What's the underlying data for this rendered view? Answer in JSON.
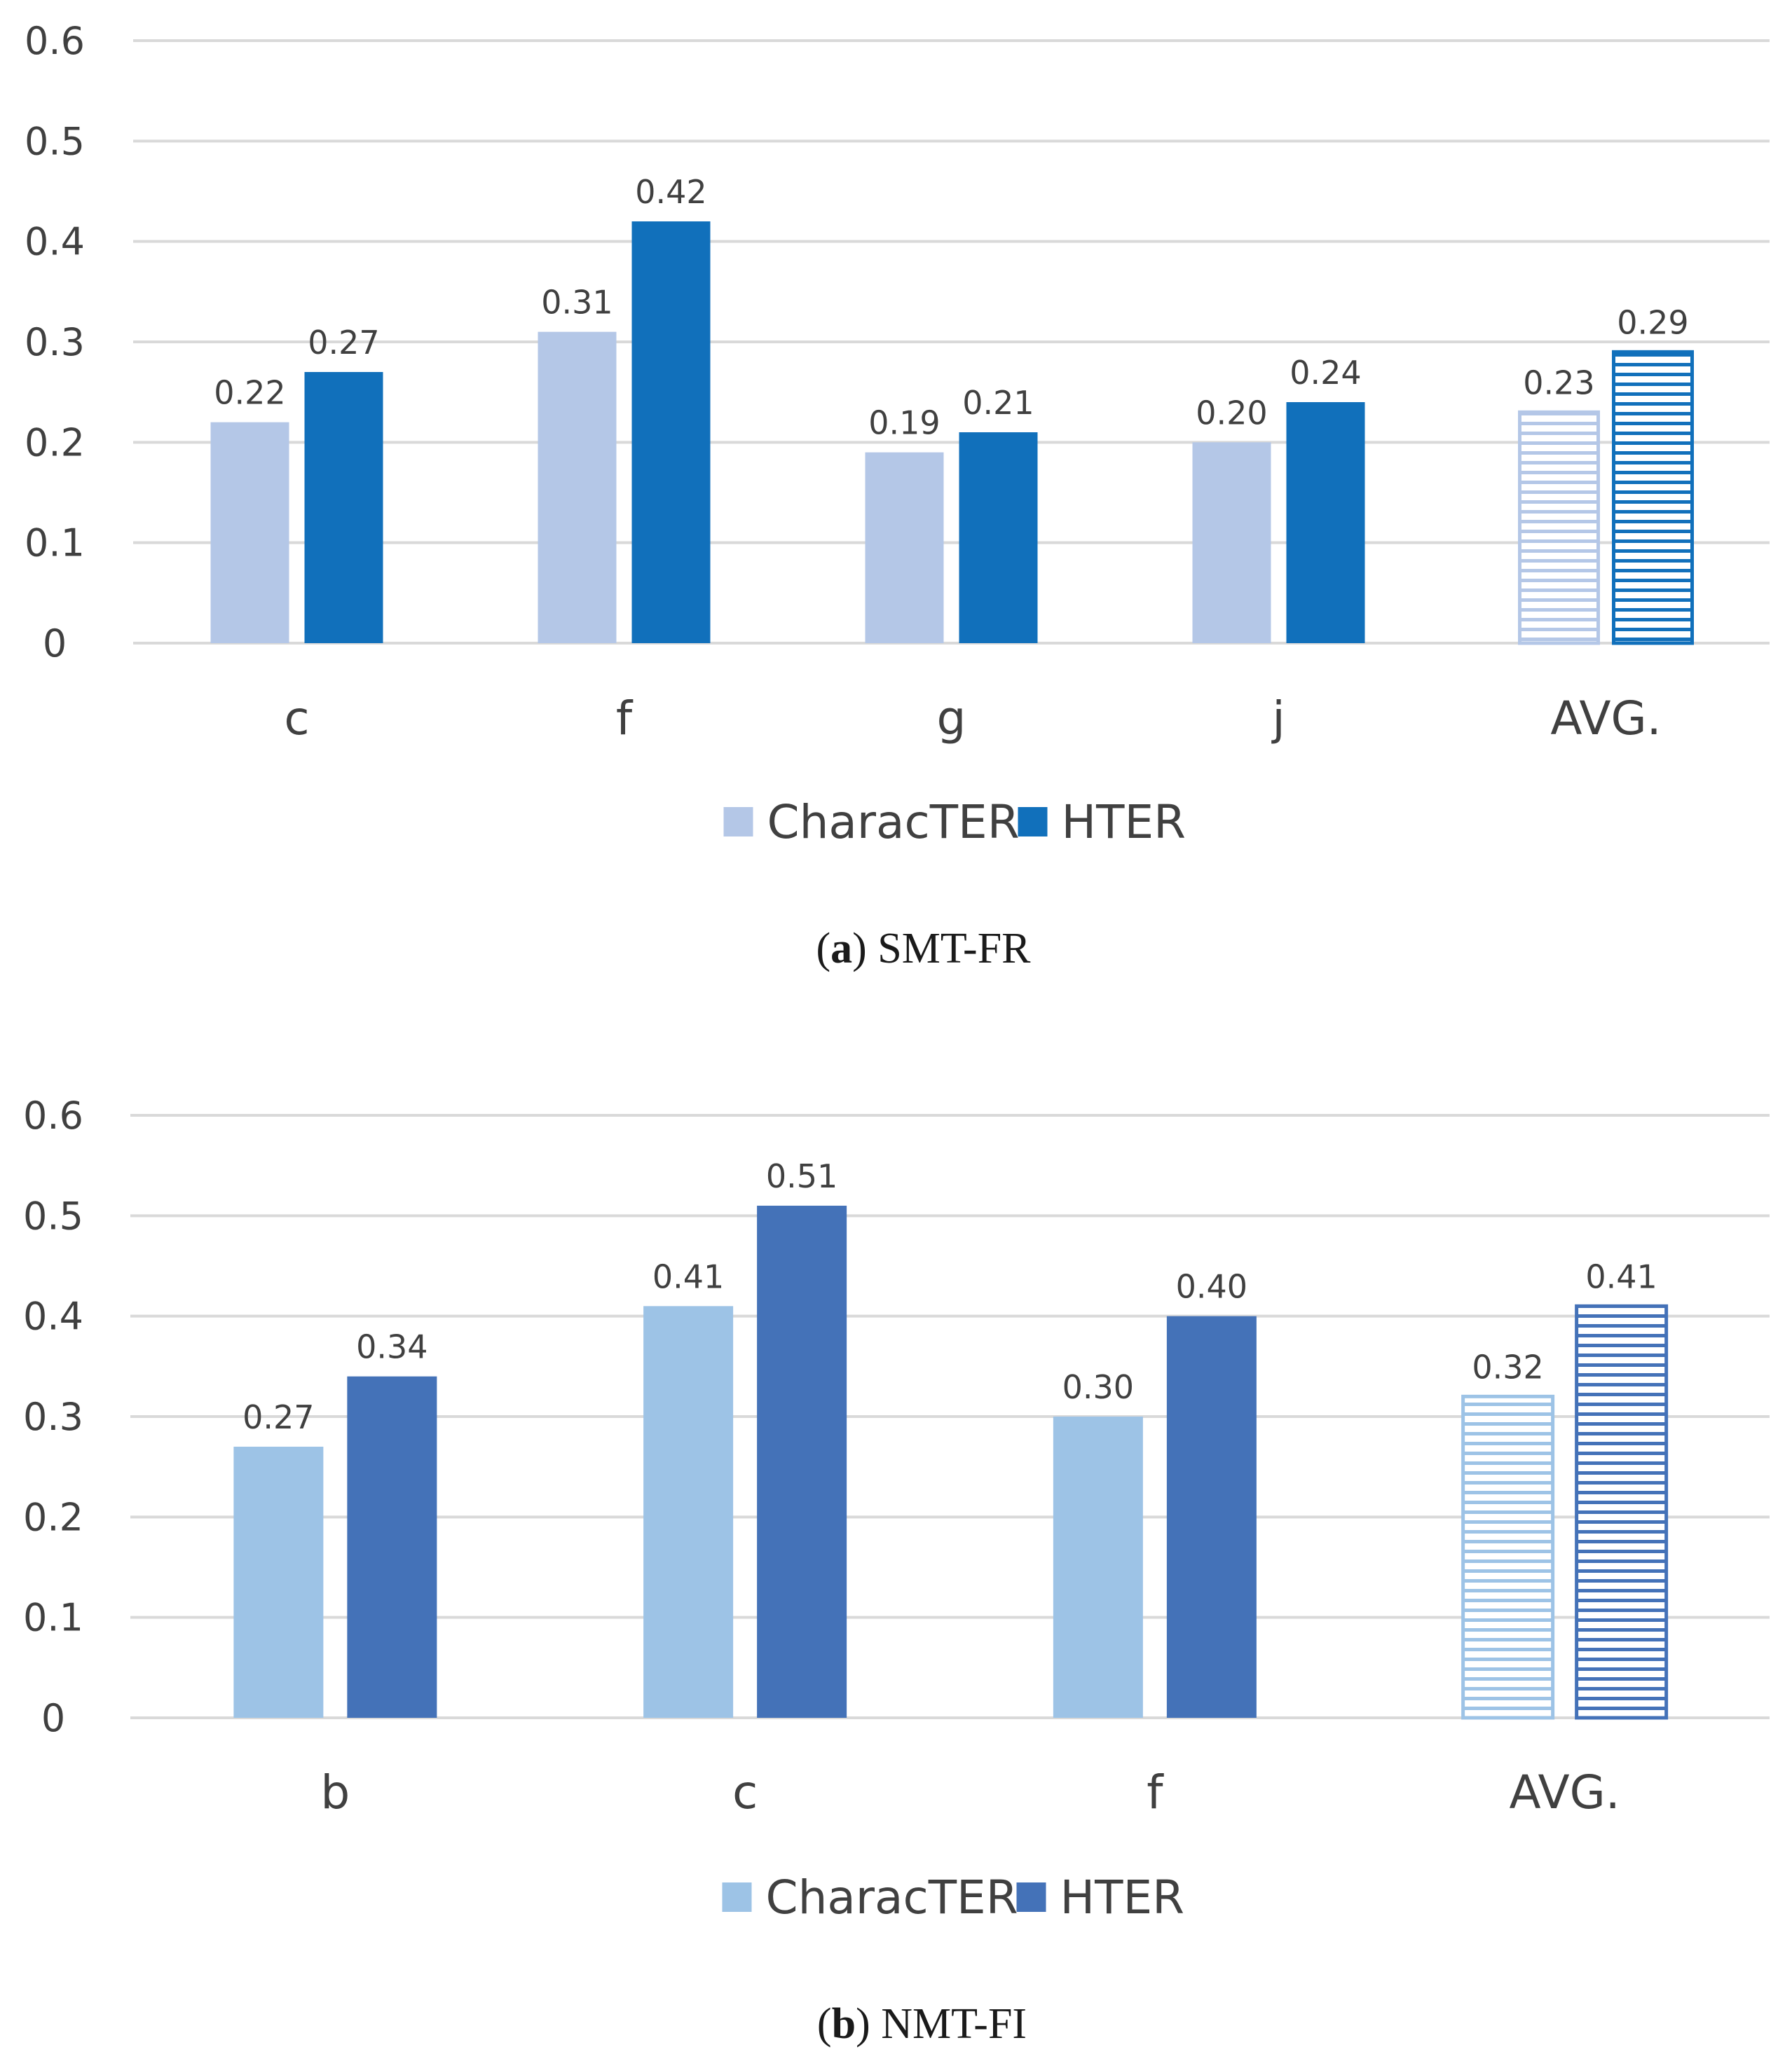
{
  "chart_data": [
    {
      "type": "bar",
      "panel": "a",
      "caption_letter": "a",
      "caption_text": "SMT-FR",
      "categories": [
        "c",
        "f",
        "g",
        "j",
        "AVG."
      ],
      "series": [
        {
          "name": "CharacTER",
          "values": [
            0.22,
            0.31,
            0.19,
            0.2,
            0.23
          ],
          "labels": [
            "0.22",
            "0.31",
            "0.19",
            "0.20",
            "0.23"
          ],
          "color": "#b4c7e7"
        },
        {
          "name": "HTER",
          "values": [
            0.27,
            0.42,
            0.21,
            0.24,
            0.29
          ],
          "labels": [
            "0.27",
            "0.42",
            "0.21",
            "0.24",
            "0.29"
          ],
          "color": "#1170bb"
        }
      ],
      "yticks": [
        "0",
        "0.1",
        "0.2",
        "0.3",
        "0.4",
        "0.5",
        "0.6"
      ],
      "ylim": [
        0,
        0.6
      ],
      "grid": true,
      "legend_position": "bottom-center",
      "hatched_category": "AVG."
    },
    {
      "type": "bar",
      "panel": "b",
      "caption_letter": "b",
      "caption_text": "NMT-FI",
      "categories": [
        "b",
        "c",
        "f",
        "AVG."
      ],
      "series": [
        {
          "name": "CharacTER",
          "values": [
            0.27,
            0.41,
            0.3,
            0.32
          ],
          "labels": [
            "0.27",
            "0.41",
            "0.30",
            "0.32"
          ],
          "color": "#9dc3e6"
        },
        {
          "name": "HTER",
          "values": [
            0.34,
            0.51,
            0.4,
            0.41
          ],
          "labels": [
            "0.34",
            "0.51",
            "0.40",
            "0.41"
          ],
          "color": "#4472b8"
        }
      ],
      "yticks": [
        "0",
        "0.1",
        "0.2",
        "0.3",
        "0.4",
        "0.5",
        "0.6"
      ],
      "ylim": [
        0,
        0.6
      ],
      "grid": true,
      "legend_position": "bottom-center",
      "hatched_category": "AVG."
    }
  ]
}
